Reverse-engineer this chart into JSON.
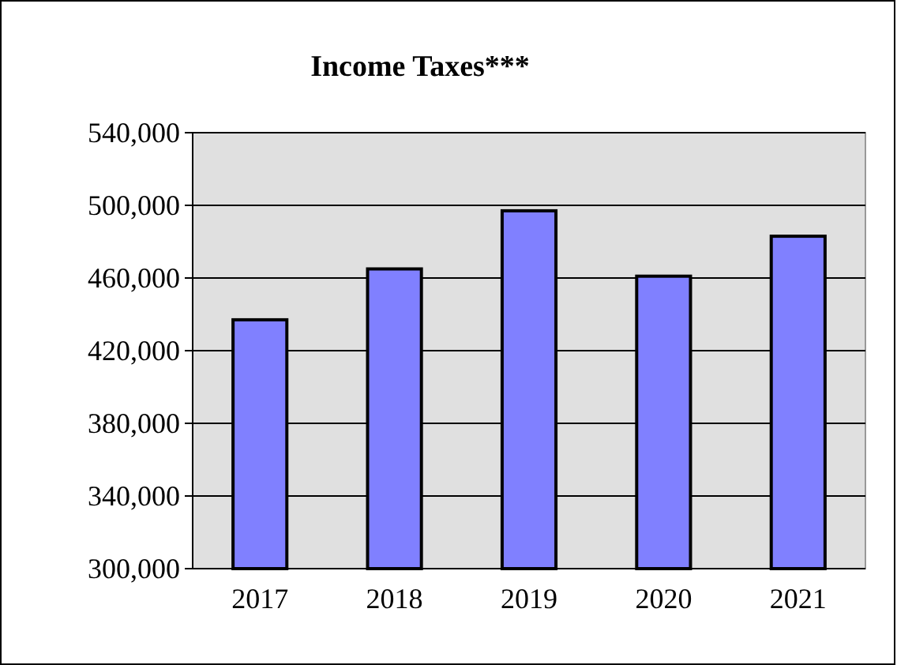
{
  "chart_data": {
    "type": "bar",
    "title": "Income Taxes***",
    "categories": [
      "2017",
      "2018",
      "2019",
      "2020",
      "2021"
    ],
    "values": [
      437000,
      465000,
      497000,
      461000,
      483000
    ],
    "color": "#8080ff",
    "ylim": [
      300000,
      540000
    ],
    "yticks": [
      {
        "value": 300000,
        "label": "300,000"
      },
      {
        "value": 340000,
        "label": "340,000"
      },
      {
        "value": 380000,
        "label": "380,000"
      },
      {
        "value": 420000,
        "label": "420,000"
      },
      {
        "value": 460000,
        "label": "460,000"
      },
      {
        "value": 500000,
        "label": "500,000"
      },
      {
        "value": 540000,
        "label": "540,000"
      }
    ],
    "grid": "y"
  }
}
